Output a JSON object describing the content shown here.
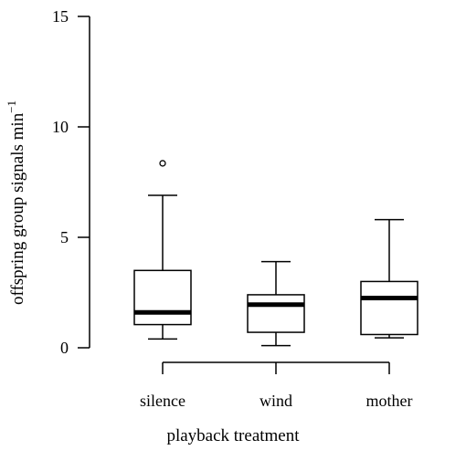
{
  "chart_data": {
    "type": "box",
    "xlabel": "playback treatment",
    "ylabel": "offspring group signals min",
    "ylabel_superscript": "−1",
    "ylim": [
      0,
      15
    ],
    "yticks": [
      0,
      5,
      10,
      15
    ],
    "categories": [
      "silence",
      "wind",
      "mother"
    ],
    "boxes": [
      {
        "category": "silence",
        "whisker_low": 0.4,
        "q1": 1.05,
        "median": 1.6,
        "q3": 3.5,
        "whisker_high": 6.9,
        "outliers": [
          8.35
        ]
      },
      {
        "category": "wind",
        "whisker_low": 0.1,
        "q1": 0.7,
        "median": 1.95,
        "q3": 2.4,
        "whisker_high": 3.9,
        "outliers": []
      },
      {
        "category": "mother",
        "whisker_low": 0.45,
        "q1": 0.6,
        "median": 2.25,
        "q3": 3.0,
        "whisker_high": 5.8,
        "outliers": []
      }
    ],
    "colors": {
      "stroke": "#000000",
      "fill": "#ffffff"
    },
    "grid": false,
    "legend": "none"
  }
}
